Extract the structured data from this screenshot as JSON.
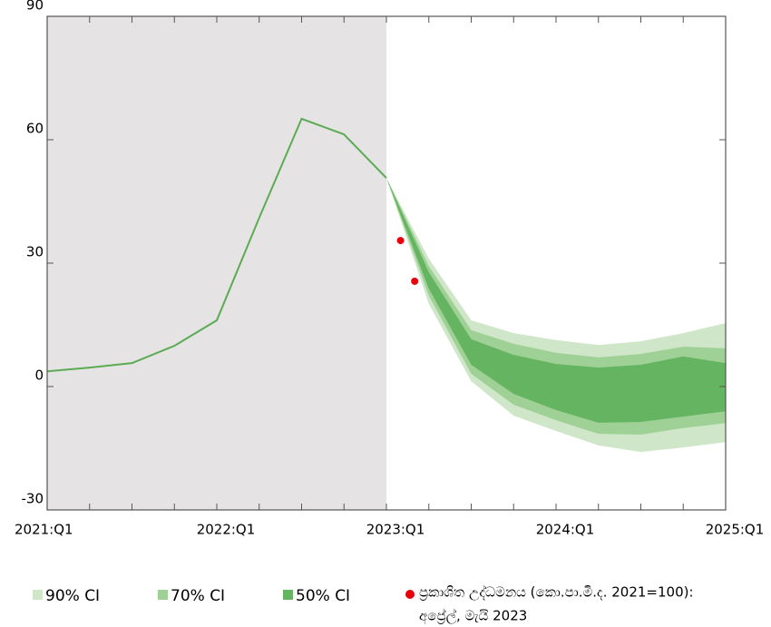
{
  "chart_data": {
    "type": "fan",
    "categories": [
      "2021:Q1",
      null,
      null,
      null,
      "2022:Q1",
      null,
      null,
      null,
      "2023:Q1",
      null,
      null,
      null,
      "2024:Q1",
      null,
      null,
      null,
      "2025:Q1"
    ],
    "ylim": [
      -30,
      90
    ],
    "yticks": [
      -30,
      0,
      30,
      60,
      90
    ],
    "series": [
      {
        "color": "#5aab54",
        "values": [
          3.7,
          4.6,
          5.7,
          9.9,
          16.1,
          41.0,
          65.1,
          61.3,
          50.7,
          null,
          null,
          null,
          null,
          null,
          null,
          null,
          null
        ]
      }
    ],
    "bands": [
      {
        "name": "90% CI",
        "color": "#cfe6c9",
        "upper": [
          null,
          null,
          null,
          null,
          null,
          null,
          null,
          null,
          50.7,
          31.1,
          16.1,
          13.0,
          11.3,
          10.1,
          11.0,
          13.0,
          15.4
        ],
        "lower": [
          null,
          null,
          null,
          null,
          null,
          null,
          null,
          null,
          50.7,
          20.1,
          1.3,
          -7.1,
          -10.8,
          -14.3,
          -15.9,
          -14.8,
          -13.5
        ]
      },
      {
        "name": "70% CI",
        "color": "#9fd196",
        "upper": [
          null,
          null,
          null,
          null,
          null,
          null,
          null,
          null,
          50.7,
          29.3,
          13.7,
          10.4,
          8.2,
          7.1,
          7.9,
          9.7,
          9.3
        ],
        "lower": [
          null,
          null,
          null,
          null,
          null,
          null,
          null,
          null,
          50.7,
          22.1,
          3.1,
          -4.4,
          -8.2,
          -11.5,
          -11.7,
          -10.1,
          -8.9
        ]
      },
      {
        "name": "50% CI",
        "color": "#65b461",
        "upper": [
          null,
          null,
          null,
          null,
          null,
          null,
          null,
          null,
          50.7,
          27.8,
          11.5,
          7.7,
          5.5,
          4.6,
          5.3,
          7.3,
          5.7
        ],
        "lower": [
          null,
          null,
          null,
          null,
          null,
          null,
          null,
          null,
          50.7,
          23.8,
          5.3,
          -1.8,
          -5.7,
          -8.8,
          -8.6,
          -7.3,
          -6.0
        ]
      }
    ],
    "points": {
      "name": [
        "ප්‍රකාශිත උද්ධමනය (කො.පා.මි.ද. 2021=100):",
        "අප්‍රේල්, මැයි 2023"
      ],
      "color": "#e8000b",
      "values": [
        35.5,
        25.6
      ]
    },
    "shade_color": "#e6e3e4"
  }
}
